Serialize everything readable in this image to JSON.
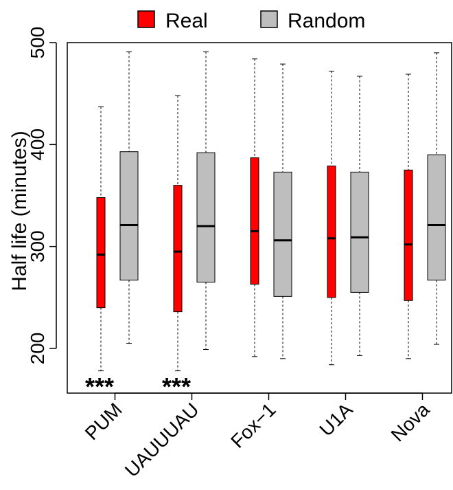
{
  "chart_data": {
    "type": "boxplot",
    "ylabel": "Half life (minutes)",
    "xlabel": "",
    "ylim": [
      165,
      510
    ],
    "yticks": [
      200,
      300,
      400,
      500
    ],
    "categories": [
      "PUM",
      "UAUUUAU",
      "Fox−1",
      "U1A",
      "Nova"
    ],
    "legend": {
      "position": "top",
      "entries": [
        {
          "label": "Real",
          "color": "#ff0000"
        },
        {
          "label": "Random",
          "color": "#bebebe"
        }
      ]
    },
    "series": [
      {
        "name": "Real",
        "color": "#ff0000",
        "boxes": [
          {
            "min": 178,
            "q1": 240,
            "median": 292,
            "q3": 348,
            "max": 437
          },
          {
            "min": 178,
            "q1": 236,
            "median": 295,
            "q3": 360,
            "max": 448
          },
          {
            "min": 192,
            "q1": 263,
            "median": 315,
            "q3": 387,
            "max": 484
          },
          {
            "min": 184,
            "q1": 250,
            "median": 308,
            "q3": 379,
            "max": 472
          },
          {
            "min": 190,
            "q1": 247,
            "median": 302,
            "q3": 375,
            "max": 469
          }
        ]
      },
      {
        "name": "Random",
        "color": "#bebebe",
        "boxes": [
          {
            "min": 205,
            "q1": 267,
            "median": 321,
            "q3": 393,
            "max": 491
          },
          {
            "min": 199,
            "q1": 265,
            "median": 320,
            "q3": 392,
            "max": 491
          },
          {
            "min": 190,
            "q1": 251,
            "median": 306,
            "q3": 373,
            "max": 479
          },
          {
            "min": 193,
            "q1": 255,
            "median": 309,
            "q3": 373,
            "max": 467
          },
          {
            "min": 204,
            "q1": 267,
            "median": 321,
            "q3": 390,
            "max": 490
          }
        ]
      }
    ],
    "annotations": [
      {
        "category": "PUM",
        "text": "***"
      },
      {
        "category": "UAUUUAU",
        "text": "***"
      }
    ]
  }
}
